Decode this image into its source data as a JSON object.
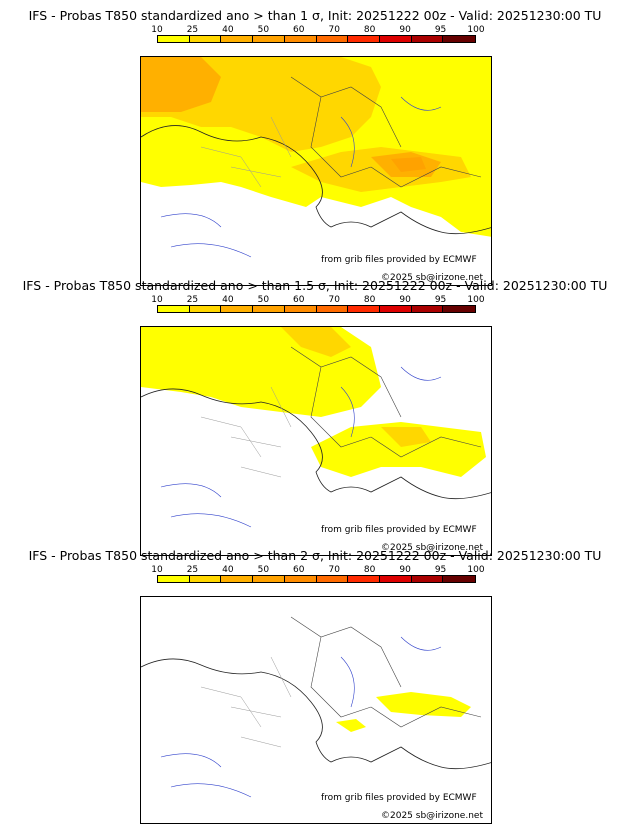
{
  "colorbar": {
    "labels": [
      "10",
      "25",
      "40",
      "50",
      "60",
      "70",
      "80",
      "90",
      "95",
      "100"
    ],
    "colors": [
      "#ffff00",
      "#ffd700",
      "#ffb000",
      "#ffa200",
      "#ff8c00",
      "#ff6a00",
      "#ff2a00",
      "#dd0000",
      "#aa0000",
      "#660000"
    ]
  },
  "credits": {
    "source": "from grib files provided by ECMWF",
    "copyright": "©2025 sb@irizone.net"
  },
  "panels": [
    {
      "title": "IFS - Probas T850  standardized ano > than 1 σ, Init: 20251222 00z - Valid: 20251230:00 TU"
    },
    {
      "title": "IFS - Probas T850  standardized ano > than 1.5 σ, Init: 20251222 00z - Valid: 20251230:00 TU"
    },
    {
      "title": "IFS - Probas T850  standardized ano > than 2 σ, Init: 20251222 00z - Valid: 20251230:00 TU"
    }
  ]
}
